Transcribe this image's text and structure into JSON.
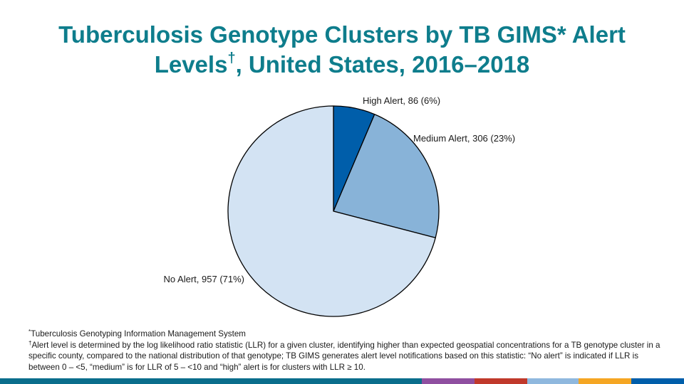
{
  "title": {
    "line1": "Tuberculosis Genotype Clusters by TB GIMS* Alert",
    "line2_before": "Levels",
    "line2_mark": "†",
    "line2_after": ", United States, 2016–2018"
  },
  "chart_data": {
    "type": "pie",
    "slices": [
      {
        "label": "High Alert, 86 (6%)",
        "value": 86,
        "color": "#005eaa"
      },
      {
        "label": "Medium Alert, 306 (23%)",
        "value": 306,
        "color": "#88b3d8"
      },
      {
        "label": "No Alert, 957 (71%)",
        "value": 957,
        "color": "#d3e3f3"
      }
    ],
    "start": "12 o'clock",
    "direction": "clockwise",
    "edge_color": "#000000"
  },
  "footnotes": {
    "note1_mark": "*",
    "note1": "Tuberculosis Genotyping Information Management System",
    "note2_mark": "†",
    "note2": "Alert level is determined by the log likelihood ratio statistic (LLR) for a given cluster, identifying higher than expected geospatial concentrations for a TB genotype cluster in a specific county, compared to the national distribution of that genotype; TB GIMS generates alert level notifications based on this statistic: “No alert” is indicated if LLR is between 0 – <5, “medium” is for LLR of 5 – <10 and “high” alert is for clusters with LLR ≥ 10."
  },
  "footer_bar_colors": [
    "#0a6e8c",
    "#8f4fa0",
    "#c0392b",
    "#8fb8de",
    "#f5a623",
    "#005eaa"
  ]
}
